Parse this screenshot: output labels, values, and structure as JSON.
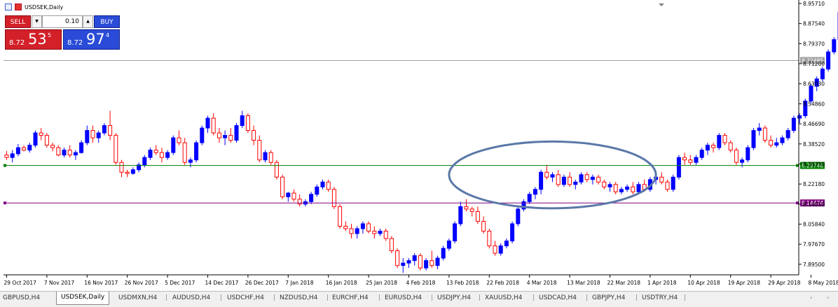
{
  "chart_title": "USDSEK,Daily",
  "trade_panel": {
    "sell_label": "SELL",
    "buy_label": "BUY",
    "lot_value": "0.10",
    "sell_price_prefix": "8.72",
    "sell_price_big": "53",
    "sell_price_sup": "5",
    "buy_price_prefix": "8.72",
    "buy_price_big": "97",
    "buy_price_sup": "4",
    "down_icon": "triangle-down-icon",
    "up_icon": "triangle-up-icon"
  },
  "colors": {
    "bull": "#0000ff",
    "bear": "#ff0000",
    "green_line": "#008000",
    "purple_line": "#800080",
    "bid_line": "#a0a0a0",
    "ellipse": "#5a78a8"
  },
  "chart_data": {
    "type": "candlestick",
    "symbol": "USDSEK",
    "timeframe": "Daily",
    "ylim": [
      7.852,
      8.9571
    ],
    "y_ticks": [
      "8.95710",
      "8.87540",
      "8.79370",
      "8.71200",
      "8.63030",
      "8.54860",
      "8.46690",
      "8.38520",
      "8.30350",
      "8.22180",
      "8.14010",
      "8.05840",
      "7.97670",
      "7.89500"
    ],
    "y_tick_values": [
      8.9571,
      8.8754,
      8.7937,
      8.712,
      8.6303,
      8.5486,
      8.4669,
      8.3852,
      8.3035,
      8.2218,
      8.1401,
      8.0584,
      7.9767,
      7.895
    ],
    "x_labels": [
      "29 Oct 2017",
      "7 Nov 2017",
      "16 Nov 2017",
      "26 Nov 2017",
      "5 Dec 2017",
      "14 Dec 2017",
      "26 Dec 2017",
      "7 Jan 2018",
      "16 Jan 2018",
      "25 Jan 2018",
      "4 Feb 2018",
      "13 Feb 2018",
      "22 Feb 2018",
      "4 Mar 2018",
      "13 Mar 2018",
      "22 Mar 2018",
      "1 Apr 2018",
      "10 Apr 2018",
      "19 Apr 2018",
      "29 Apr 2018",
      "8 May 2018"
    ],
    "x_label_index": [
      0,
      7,
      14,
      21,
      28,
      35,
      42,
      49,
      56,
      63,
      70,
      77,
      84,
      91,
      98,
      105,
      112,
      119,
      126,
      133,
      140
    ],
    "horizontal_lines": [
      {
        "price": 8.72485,
        "label": "8.72485",
        "color": "#a0a0a0"
      },
      {
        "price": 8.29746,
        "label": "8.29746",
        "color": "#008000"
      },
      {
        "price": 8.14474,
        "label": "8.14474",
        "color": "#800080"
      }
    ],
    "ellipse": {
      "start_index": 77,
      "end_index": 113,
      "price_top": 8.395,
      "price_bottom": 8.123
    },
    "ohlc": [
      [
        8.34,
        8.356,
        8.32,
        8.33
      ],
      [
        8.33,
        8.36,
        8.31,
        8.345
      ],
      [
        8.345,
        8.385,
        8.335,
        8.37
      ],
      [
        8.37,
        8.38,
        8.355,
        8.36
      ],
      [
        8.36,
        8.39,
        8.35,
        8.38
      ],
      [
        8.38,
        8.44,
        8.37,
        8.43
      ],
      [
        8.43,
        8.45,
        8.4,
        8.42
      ],
      [
        8.42,
        8.43,
        8.37,
        8.38
      ],
      [
        8.38,
        8.39,
        8.355,
        8.37
      ],
      [
        8.37,
        8.38,
        8.335,
        8.34
      ],
      [
        8.34,
        8.37,
        8.33,
        8.36
      ],
      [
        8.36,
        8.38,
        8.33,
        8.34
      ],
      [
        8.34,
        8.36,
        8.32,
        8.35
      ],
      [
        8.35,
        8.4,
        8.345,
        8.39
      ],
      [
        8.39,
        8.46,
        8.38,
        8.44
      ],
      [
        8.44,
        8.46,
        8.39,
        8.41
      ],
      [
        8.41,
        8.44,
        8.39,
        8.43
      ],
      [
        8.43,
        8.47,
        8.42,
        8.46
      ],
      [
        8.46,
        8.52,
        8.4,
        8.42
      ],
      [
        8.42,
        8.43,
        8.3,
        8.31
      ],
      [
        8.31,
        8.32,
        8.25,
        8.27
      ],
      [
        8.27,
        8.28,
        8.25,
        8.265
      ],
      [
        8.265,
        8.29,
        8.26,
        8.28
      ],
      [
        8.28,
        8.31,
        8.27,
        8.3
      ],
      [
        8.3,
        8.34,
        8.29,
        8.33
      ],
      [
        8.33,
        8.37,
        8.32,
        8.36
      ],
      [
        8.36,
        8.38,
        8.34,
        8.35
      ],
      [
        8.35,
        8.37,
        8.31,
        8.33
      ],
      [
        8.33,
        8.36,
        8.32,
        8.35
      ],
      [
        8.35,
        8.42,
        8.34,
        8.41
      ],
      [
        8.41,
        8.44,
        8.38,
        8.39
      ],
      [
        8.39,
        8.41,
        8.3,
        8.31
      ],
      [
        8.31,
        8.33,
        8.29,
        8.32
      ],
      [
        8.32,
        8.4,
        8.31,
        8.39
      ],
      [
        8.39,
        8.46,
        8.38,
        8.45
      ],
      [
        8.45,
        8.5,
        8.43,
        8.49
      ],
      [
        8.49,
        8.51,
        8.42,
        8.43
      ],
      [
        8.43,
        8.45,
        8.39,
        8.41
      ],
      [
        8.41,
        8.44,
        8.38,
        8.42
      ],
      [
        8.42,
        8.45,
        8.39,
        8.4
      ],
      [
        8.4,
        8.47,
        8.39,
        8.46
      ],
      [
        8.46,
        8.52,
        8.45,
        8.5
      ],
      [
        8.5,
        8.51,
        8.43,
        8.44
      ],
      [
        8.44,
        8.46,
        8.38,
        8.4
      ],
      [
        8.4,
        8.42,
        8.31,
        8.32
      ],
      [
        8.32,
        8.36,
        8.31,
        8.35
      ],
      [
        8.35,
        8.36,
        8.3,
        8.31
      ],
      [
        8.31,
        8.32,
        8.24,
        8.25
      ],
      [
        8.25,
        8.26,
        8.16,
        8.17
      ],
      [
        8.17,
        8.19,
        8.15,
        8.185
      ],
      [
        8.185,
        8.2,
        8.15,
        8.16
      ],
      [
        8.16,
        8.18,
        8.13,
        8.14
      ],
      [
        8.14,
        8.16,
        8.13,
        8.15
      ],
      [
        8.15,
        8.19,
        8.14,
        8.18
      ],
      [
        8.18,
        8.22,
        8.17,
        8.21
      ],
      [
        8.21,
        8.24,
        8.2,
        8.23
      ],
      [
        8.23,
        8.24,
        8.19,
        8.2
      ],
      [
        8.2,
        8.21,
        8.12,
        8.13
      ],
      [
        8.13,
        8.14,
        8.04,
        8.05
      ],
      [
        8.05,
        8.07,
        8.03,
        8.04
      ],
      [
        8.04,
        8.06,
        8.0,
        8.02
      ],
      [
        8.02,
        8.05,
        8.0,
        8.04
      ],
      [
        8.04,
        8.07,
        8.02,
        8.06
      ],
      [
        8.06,
        8.07,
        8.02,
        8.03
      ],
      [
        8.03,
        8.05,
        8.0,
        8.02
      ],
      [
        8.02,
        8.04,
        8.01,
        8.03
      ],
      [
        8.03,
        8.04,
        7.99,
        8.0
      ],
      [
        8.0,
        8.01,
        7.94,
        7.95
      ],
      [
        7.95,
        7.96,
        7.88,
        7.89
      ],
      [
        7.89,
        7.92,
        7.86,
        7.9
      ],
      [
        7.9,
        7.92,
        7.88,
        7.91
      ],
      [
        7.91,
        7.94,
        7.89,
        7.93
      ],
      [
        7.93,
        7.94,
        7.87,
        7.88
      ],
      [
        7.88,
        7.92,
        7.87,
        7.91
      ],
      [
        7.91,
        7.95,
        7.88,
        7.89
      ],
      [
        7.89,
        7.93,
        7.875,
        7.92
      ],
      [
        7.92,
        7.97,
        7.91,
        7.96
      ],
      [
        7.96,
        8.0,
        7.95,
        7.99
      ],
      [
        7.99,
        8.07,
        7.98,
        8.06
      ],
      [
        8.06,
        8.15,
        8.05,
        8.13
      ],
      [
        8.13,
        8.16,
        8.11,
        8.12
      ],
      [
        8.12,
        8.13,
        8.09,
        8.11
      ],
      [
        8.11,
        8.13,
        8.06,
        8.07
      ],
      [
        8.07,
        8.09,
        8.02,
        8.03
      ],
      [
        8.03,
        8.04,
        7.96,
        7.97
      ],
      [
        7.97,
        7.99,
        7.93,
        7.94
      ],
      [
        7.94,
        7.98,
        7.93,
        7.97
      ],
      [
        7.97,
        8.0,
        7.96,
        7.99
      ],
      [
        7.99,
        8.07,
        7.98,
        8.06
      ],
      [
        8.06,
        8.13,
        8.05,
        8.12
      ],
      [
        8.12,
        8.16,
        8.11,
        8.15
      ],
      [
        8.15,
        8.19,
        8.14,
        8.18
      ],
      [
        8.18,
        8.21,
        8.16,
        8.2
      ],
      [
        8.2,
        8.28,
        8.18,
        8.27
      ],
      [
        8.27,
        8.3,
        8.24,
        8.25
      ],
      [
        8.25,
        8.27,
        8.23,
        8.26
      ],
      [
        8.26,
        8.28,
        8.21,
        8.22
      ],
      [
        8.22,
        8.26,
        8.21,
        8.25
      ],
      [
        8.25,
        8.27,
        8.21,
        8.22
      ],
      [
        8.22,
        8.24,
        8.2,
        8.23
      ],
      [
        8.23,
        8.27,
        8.22,
        8.26
      ],
      [
        8.26,
        8.27,
        8.23,
        8.24
      ],
      [
        8.24,
        8.26,
        8.22,
        8.25
      ],
      [
        8.25,
        8.26,
        8.22,
        8.23
      ],
      [
        8.23,
        8.24,
        8.2,
        8.21
      ],
      [
        8.21,
        8.23,
        8.19,
        8.22
      ],
      [
        8.22,
        8.23,
        8.18,
        8.19
      ],
      [
        8.19,
        8.21,
        8.18,
        8.2
      ],
      [
        8.2,
        8.22,
        8.19,
        8.21
      ],
      [
        8.21,
        8.23,
        8.18,
        8.19
      ],
      [
        8.19,
        8.23,
        8.18,
        8.22
      ],
      [
        8.22,
        8.24,
        8.19,
        8.2
      ],
      [
        8.2,
        8.25,
        8.19,
        8.24
      ],
      [
        8.24,
        8.26,
        8.22,
        8.25
      ],
      [
        8.25,
        8.27,
        8.22,
        8.23
      ],
      [
        8.23,
        8.24,
        8.19,
        8.2
      ],
      [
        8.2,
        8.26,
        8.19,
        8.25
      ],
      [
        8.25,
        8.34,
        8.24,
        8.33
      ],
      [
        8.33,
        8.35,
        8.3,
        8.32
      ],
      [
        8.32,
        8.34,
        8.3,
        8.31
      ],
      [
        8.31,
        8.34,
        8.3,
        8.33
      ],
      [
        8.33,
        8.37,
        8.32,
        8.36
      ],
      [
        8.36,
        8.39,
        8.34,
        8.38
      ],
      [
        8.38,
        8.39,
        8.35,
        8.37
      ],
      [
        8.37,
        8.43,
        8.36,
        8.42
      ],
      [
        8.42,
        8.43,
        8.38,
        8.39
      ],
      [
        8.39,
        8.4,
        8.35,
        8.36
      ],
      [
        8.36,
        8.37,
        8.3,
        8.31
      ],
      [
        8.31,
        8.33,
        8.29,
        8.32
      ],
      [
        8.32,
        8.38,
        8.31,
        8.37
      ],
      [
        8.37,
        8.45,
        8.36,
        8.44
      ],
      [
        8.44,
        8.47,
        8.42,
        8.45
      ],
      [
        8.45,
        8.46,
        8.39,
        8.4
      ],
      [
        8.4,
        8.42,
        8.37,
        8.38
      ],
      [
        8.38,
        8.41,
        8.37,
        8.39
      ],
      [
        8.39,
        8.42,
        8.38,
        8.41
      ],
      [
        8.41,
        8.45,
        8.4,
        8.44
      ],
      [
        8.44,
        8.5,
        8.43,
        8.49
      ],
      [
        8.49,
        8.51,
        8.47,
        8.5
      ],
      [
        8.5,
        8.57,
        8.49,
        8.56
      ],
      [
        8.56,
        8.63,
        8.55,
        8.62
      ],
      [
        8.62,
        8.66,
        8.6,
        8.65
      ],
      [
        8.65,
        8.7,
        8.64,
        8.69
      ],
      [
        8.69,
        8.77,
        8.68,
        8.76
      ],
      [
        8.76,
        8.82,
        8.75,
        8.81
      ],
      [
        8.81,
        8.93,
        8.8,
        8.92
      ]
    ]
  },
  "tabs": [
    {
      "label": "GBPUSD,H4",
      "active": false
    },
    {
      "label": "USDSEK,Daily",
      "active": true
    },
    {
      "label": "USDMXN,H4",
      "active": false
    },
    {
      "label": "AUDUSD,H4",
      "active": false
    },
    {
      "label": "USDCHF,H4",
      "active": false
    },
    {
      "label": "NZDUSD,H4",
      "active": false
    },
    {
      "label": "EURCHF,H4",
      "active": false
    },
    {
      "label": "EURUSD,H4",
      "active": false
    },
    {
      "label": "USDJPY,H4",
      "active": false
    },
    {
      "label": "XAUUSD,H4",
      "active": false
    },
    {
      "label": "USDCAD,H4",
      "active": false
    },
    {
      "label": "GBPJPY,H4",
      "active": false
    },
    {
      "label": "USDTRY,H4",
      "active": false
    }
  ],
  "tab_scroll": {
    "left_icon": "chevron-left-icon",
    "right_icon": "chevron-right-icon"
  }
}
